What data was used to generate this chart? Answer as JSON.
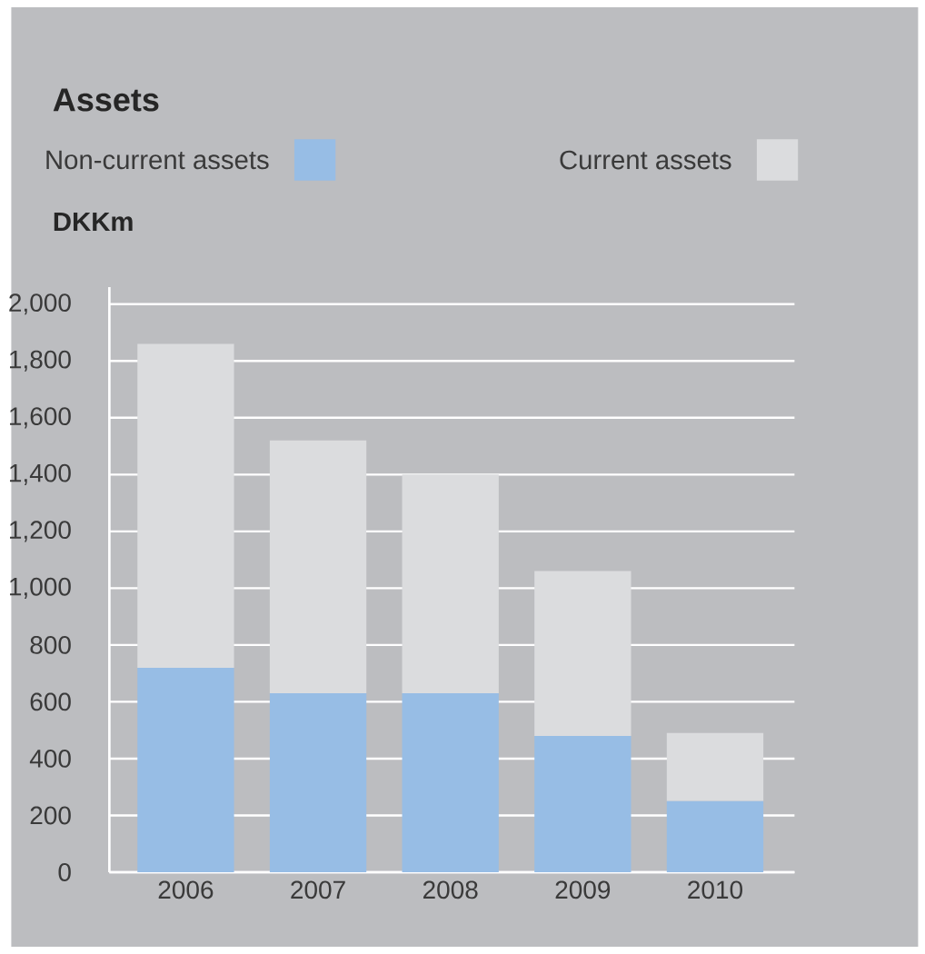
{
  "chart_data": {
    "type": "bar",
    "stacked": true,
    "title": "Assets",
    "ylabel": "DKKm",
    "categories": [
      "2006",
      "2007",
      "2008",
      "2009",
      "2010"
    ],
    "series": [
      {
        "name": "Non-current assets",
        "color": "#97bde5",
        "values": [
          720,
          630,
          630,
          480,
          250
        ]
      },
      {
        "name": "Current assets",
        "color": "#dbdcde",
        "values": [
          1140,
          890,
          770,
          580,
          240
        ]
      }
    ],
    "ylim": [
      0,
      2000
    ],
    "yticks": [
      0,
      200,
      400,
      600,
      800,
      {
        "value": 1000,
        "label": "1,000"
      },
      {
        "value": 1200,
        "label": "1,200"
      },
      {
        "value": 1400,
        "label": "1,400"
      },
      {
        "value": 1600,
        "label": "1,600"
      },
      {
        "value": 1800,
        "label": "1,800"
      },
      {
        "value": 2000,
        "label": "2,000"
      }
    ],
    "grid": "y",
    "legend": "top"
  }
}
